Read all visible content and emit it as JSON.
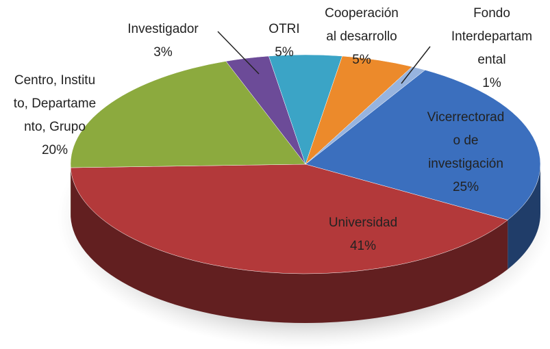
{
  "chart_data": {
    "type": "pie3d",
    "categories": [
      [
        "Vicerrectorad",
        "o de",
        "investigación"
      ],
      [
        "Universidad"
      ],
      [
        "Centro, Institu",
        "to, Departame",
        "nto, Grupo"
      ],
      [
        "Investigador"
      ],
      [
        "OTRI"
      ],
      [
        "Cooperación",
        "al desarrollo"
      ],
      [
        "Fondo",
        "Interdepartam",
        "ental"
      ]
    ],
    "values": [
      25,
      41,
      20,
      3,
      5,
      5,
      1
    ],
    "value_labels": [
      "25%",
      "41%",
      "20%",
      "3%",
      "5%",
      "5%",
      "1%"
    ],
    "colors": [
      "#3b6fbe",
      "#b3393a",
      "#8caa3e",
      "#6c4b98",
      "#3ba4c6",
      "#ec8a2b",
      "#97b4df"
    ]
  }
}
